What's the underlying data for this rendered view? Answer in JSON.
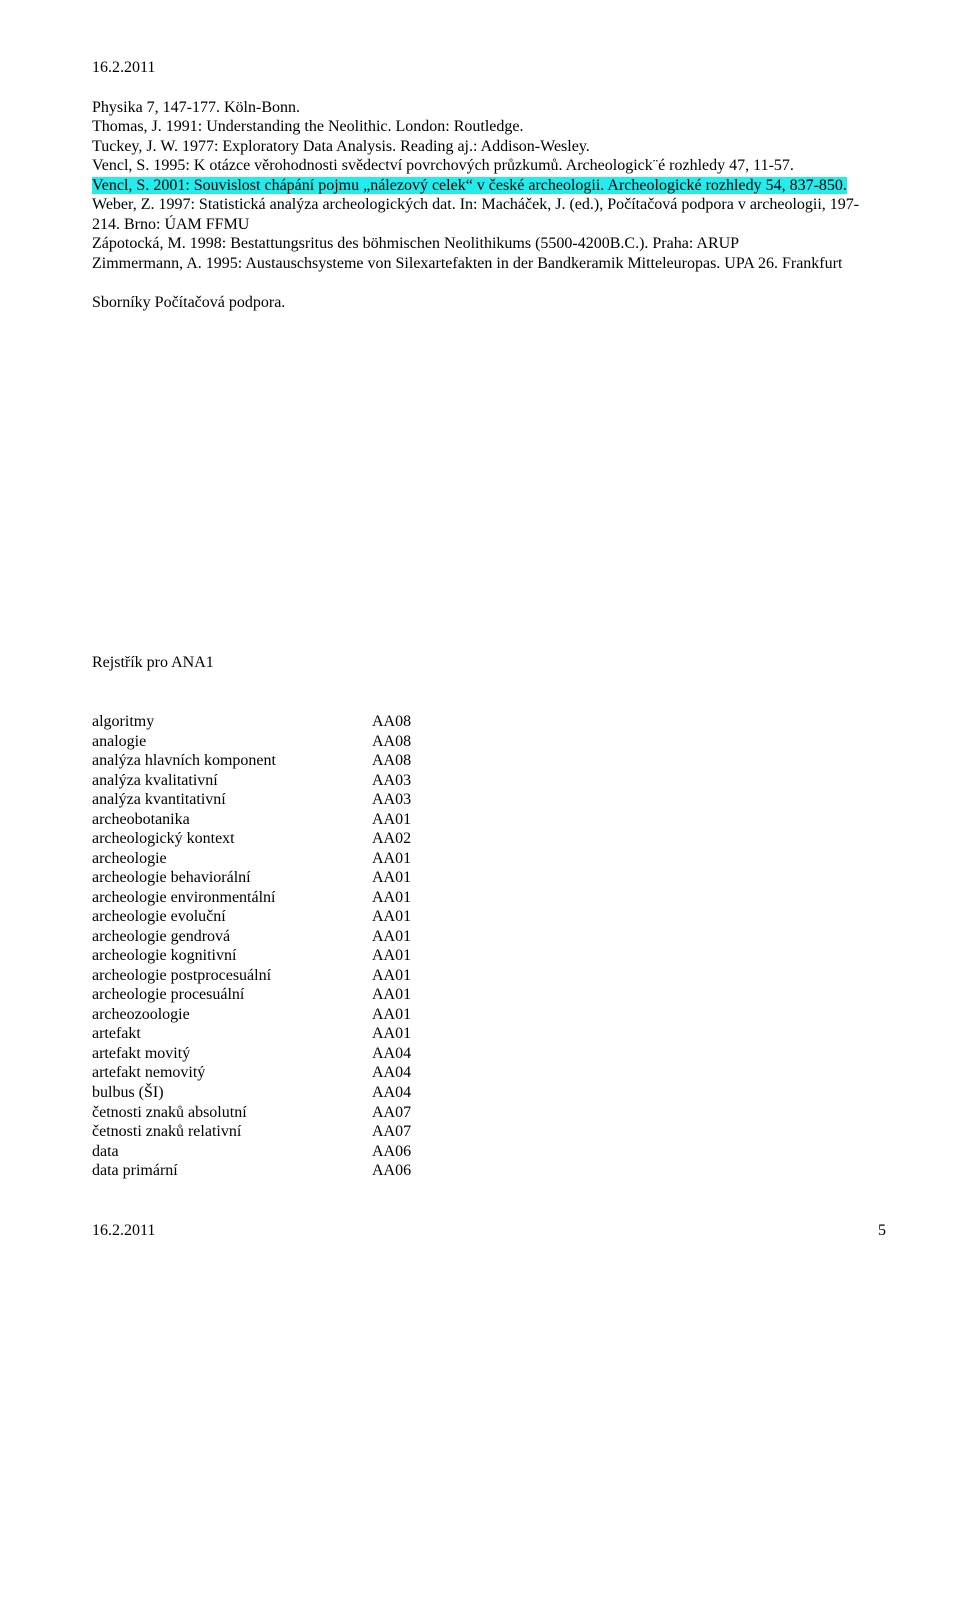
{
  "header": {
    "date": "16.2.2011"
  },
  "references": {
    "lines": [
      {
        "text": "Physika 7, 147-177. Köln-Bonn.",
        "highlight": false
      },
      {
        "text": "Thomas, J. 1991: Understanding the Neolithic.  London: Routledge.",
        "highlight": false
      },
      {
        "text": "Tuckey, J. W. 1977: Exploratory Data Analysis. Reading aj.: Addison-Wesley.",
        "highlight": false
      },
      {
        "text": "Vencl, S. 1995: K otázce věrohodnosti svědectví povrchových průzkumů. Archeologick¨é rozhledy 47, 11-57.",
        "highlight": false
      },
      {
        "text": "Vencl, S. 2001: Souvislost chápání pojmu „nálezový celek“ v české archeologii. Archeologické rozhledy 54, 837-850.",
        "highlight": true
      },
      {
        "text": "Weber, Z. 1997: Statistická analýza archeologických dat. In: Macháček, J. (ed.), Počítačová podpora v archeologii, 197-214. Brno:  ÚAM FFMU",
        "highlight": false
      },
      {
        "text": "Zápotocká, M. 1998: Bestattungsritus des böhmischen Neolithikums (5500-4200B.C.). Praha: ARUP",
        "highlight": false
      },
      {
        "text": "Zimmermann, A. 1995: Austauschsysteme von Silexartefakten in der Bandkeramik Mitteleuropas. UPA 26. Frankfurt",
        "highlight": false
      }
    ],
    "closing": "Sborníky Počítačová podpora."
  },
  "index": {
    "title": "Rejstřík pro ANA1",
    "rows": [
      {
        "term": "algoritmy",
        "code": "AA08"
      },
      {
        "term": "analogie",
        "code": "AA08"
      },
      {
        "term": "analýza hlavních komponent",
        "code": "AA08"
      },
      {
        "term": "analýza kvalitativní",
        "code": "AA03"
      },
      {
        "term": "analýza kvantitativní",
        "code": "AA03"
      },
      {
        "term": "archeobotanika",
        "code": "AA01"
      },
      {
        "term": "archeologický kontext",
        "code": "AA02"
      },
      {
        "term": "archeologie",
        "code": "AA01"
      },
      {
        "term": "archeologie behaviorální",
        "code": "AA01"
      },
      {
        "term": "archeologie environmentální",
        "code": "AA01"
      },
      {
        "term": "archeologie evoluční",
        "code": "AA01"
      },
      {
        "term": "archeologie gendrová",
        "code": "AA01"
      },
      {
        "term": "archeologie kognitivní",
        "code": "AA01"
      },
      {
        "term": "archeologie postprocesuální",
        "code": "AA01"
      },
      {
        "term": "archeologie procesuální",
        "code": "AA01"
      },
      {
        "term": "archeozoologie",
        "code": "AA01"
      },
      {
        "term": "artefakt",
        "code": "AA01"
      },
      {
        "term": "artefakt movitý",
        "code": "AA04"
      },
      {
        "term": "artefakt nemovitý",
        "code": "AA04"
      },
      {
        "term": "bulbus (ŠI)",
        "code": "AA04"
      },
      {
        "term": "četnosti znaků absolutní",
        "code": "AA07"
      },
      {
        "term": "četnosti znaků relativní",
        "code": "AA07"
      },
      {
        "term": "data",
        "code": "AA06"
      },
      {
        "term": "data primární",
        "code": "AA06"
      }
    ]
  },
  "footer": {
    "date": "16.2.2011",
    "page": "5"
  }
}
